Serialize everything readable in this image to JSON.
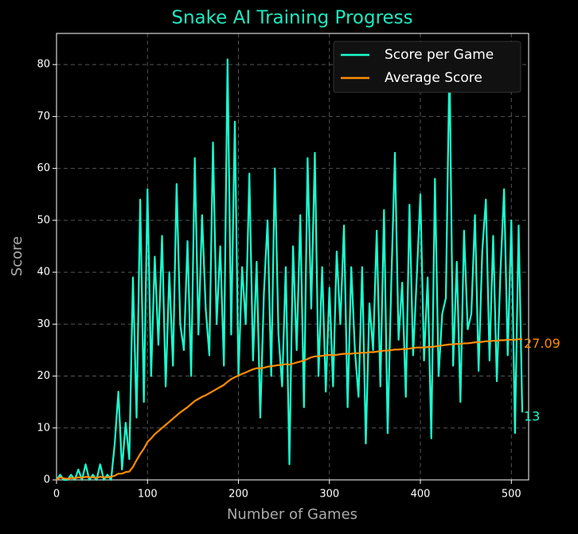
{
  "chart_data": {
    "type": "line",
    "title": "Snake AI Training Progress",
    "x_label": "Number of Games",
    "y_label": "Score",
    "xlim": [
      0,
      519
    ],
    "ylim": [
      0,
      86
    ],
    "xticks": [
      0,
      100,
      200,
      300,
      400,
      500
    ],
    "yticks": [
      0,
      10,
      20,
      30,
      40,
      50,
      60,
      70,
      80
    ],
    "grid": true,
    "legend": "upper right",
    "x": [
      0,
      4,
      8,
      12,
      16,
      20,
      24,
      28,
      32,
      36,
      40,
      44,
      48,
      52,
      56,
      60,
      64,
      68,
      72,
      76,
      80,
      84,
      88,
      92,
      96,
      100,
      104,
      108,
      112,
      116,
      120,
      124,
      128,
      132,
      136,
      140,
      144,
      148,
      152,
      156,
      160,
      164,
      168,
      172,
      176,
      180,
      184,
      188,
      192,
      196,
      200,
      204,
      208,
      212,
      216,
      220,
      224,
      228,
      232,
      236,
      240,
      244,
      248,
      252,
      256,
      260,
      264,
      268,
      272,
      276,
      280,
      284,
      288,
      292,
      296,
      300,
      304,
      308,
      312,
      316,
      320,
      324,
      328,
      332,
      336,
      340,
      344,
      348,
      352,
      356,
      360,
      364,
      368,
      372,
      376,
      380,
      384,
      388,
      392,
      396,
      400,
      404,
      408,
      412,
      416,
      420,
      424,
      428,
      432,
      436,
      440,
      444,
      448,
      452,
      456,
      460,
      464,
      468,
      472,
      476,
      480,
      484,
      488,
      492,
      496,
      500,
      504,
      508,
      512
    ],
    "series": [
      {
        "name": "Score per Game",
        "color": "#1affd0",
        "values": [
          0,
          1,
          0,
          0,
          1,
          0,
          2,
          0,
          3,
          0,
          1,
          0,
          3,
          0,
          1,
          0,
          7,
          17,
          2,
          11,
          4,
          39,
          12,
          54,
          15,
          56,
          20,
          43,
          26,
          47,
          18,
          40,
          22,
          57,
          30,
          25,
          46,
          20,
          62,
          28,
          51,
          33,
          24,
          65,
          30,
          45,
          22,
          81,
          28,
          69,
          20,
          41,
          30,
          59,
          23,
          42,
          12,
          36,
          50,
          20,
          60,
          28,
          18,
          41,
          3,
          45,
          25,
          51,
          14,
          62,
          33,
          63,
          20,
          41,
          17,
          37,
          18,
          44,
          30,
          49,
          14,
          41,
          25,
          16,
          41,
          7,
          34,
          25,
          48,
          18,
          52,
          9,
          38,
          63,
          27,
          38,
          16,
          53,
          24,
          39,
          55,
          23,
          39,
          8,
          58,
          20,
          32,
          35,
          81,
          22,
          42,
          15,
          48,
          29,
          32,
          51,
          21,
          44,
          54,
          23,
          47,
          19,
          40,
          56,
          24,
          50,
          9,
          49,
          13
        ]
      },
      {
        "name": "Average Score",
        "color": "#ff8c00",
        "values": [
          0,
          0.5,
          0.3,
          0.2,
          0.4,
          0.3,
          0.5,
          0.4,
          0.6,
          0.5,
          0.5,
          0.4,
          0.6,
          0.5,
          0.5,
          0.6,
          0.8,
          1.2,
          1.2,
          1.5,
          1.6,
          2.5,
          3.8,
          5,
          6,
          7.3,
          8,
          8.8,
          9.4,
          10,
          10.6,
          11.2,
          11.8,
          12.4,
          13,
          13.5,
          14,
          14.6,
          15.2,
          15.6,
          16,
          16.3,
          16.7,
          17.1,
          17.5,
          17.9,
          18.3,
          18.9,
          19.4,
          19.8,
          20.1,
          20.4,
          20.7,
          21,
          21.3,
          21.5,
          21.5,
          21.6,
          21.8,
          21.9,
          22,
          22.1,
          22.2,
          22.3,
          22.2,
          22.4,
          22.6,
          22.8,
          23,
          23.3,
          23.6,
          23.8,
          23.8,
          23.9,
          24,
          24.1,
          24,
          24.1,
          24.2,
          24.3,
          24.3,
          24.3,
          24.4,
          24.4,
          24.5,
          24.5,
          24.6,
          24.6,
          24.7,
          24.8,
          24.9,
          24.9,
          25,
          25.1,
          25.1,
          25.2,
          25.2,
          25.3,
          25.4,
          25.5,
          25.5,
          25.5,
          25.6,
          25.6,
          25.7,
          25.8,
          25.9,
          26,
          26.1,
          26.1,
          26.2,
          26.2,
          26.3,
          26.3,
          26.4,
          26.5,
          26.5,
          26.6,
          26.7,
          26.7,
          26.8,
          26.8,
          26.9,
          26.9,
          27,
          27,
          27,
          27.1,
          27.09
        ]
      }
    ]
  }
}
